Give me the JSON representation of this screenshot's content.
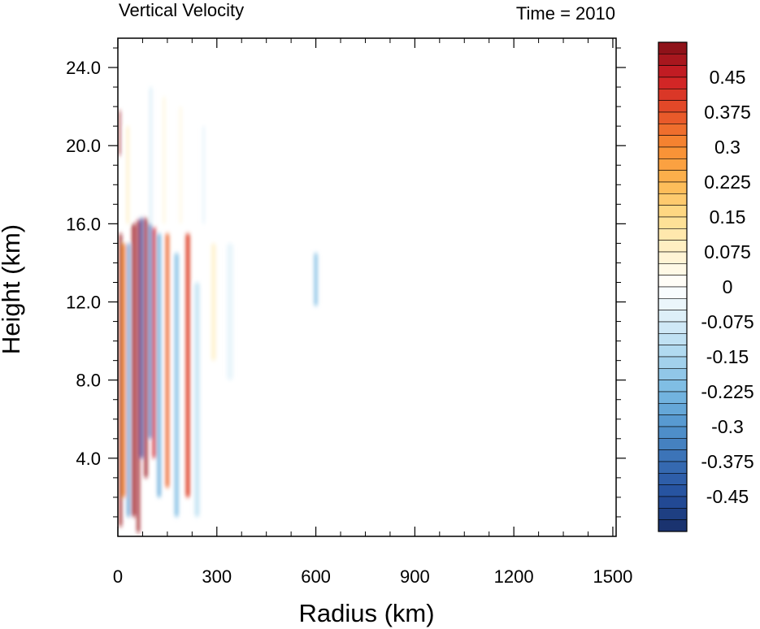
{
  "chart_data": {
    "type": "heatmap",
    "title_left": "Vertical Velocity",
    "title_right": "Time = 2010",
    "xlabel": "Radius (km)",
    "ylabel": "Height (km)",
    "xlim": [
      0,
      1510
    ],
    "ylim": [
      0,
      25.5
    ],
    "xticks": [
      0,
      300,
      600,
      900,
      1200,
      1500
    ],
    "xticklabels": [
      "0",
      "300",
      "600",
      "900",
      "1200",
      "1500"
    ],
    "yticks": [
      4,
      8,
      12,
      16,
      20,
      24
    ],
    "yticklabels": [
      "4.0",
      "8.0",
      "12.0",
      "16.0",
      "20.0",
      "24.0"
    ],
    "colorbar": {
      "min": -0.525,
      "max": 0.525,
      "step": 0.025,
      "labels": [
        "0.45",
        "0.375",
        "0.3",
        "0.225",
        "0.15",
        "0.075",
        "0",
        "-0.075",
        "-0.15",
        "-0.225",
        "-0.3",
        "-0.375",
        "-0.45"
      ],
      "label_values": [
        0.45,
        0.375,
        0.3,
        0.225,
        0.15,
        0.075,
        0,
        -0.075,
        -0.15,
        -0.225,
        -0.3,
        -0.375,
        -0.45
      ]
    },
    "features": [
      {
        "r": 8,
        "r_width": 8,
        "z_bot": 0.5,
        "z_top": 15.5,
        "w": 0.5
      },
      {
        "r": 5,
        "r_width": 5,
        "z_bot": 19.5,
        "z_top": 21.8,
        "w": 0.5
      },
      {
        "r": 18,
        "r_width": 10,
        "z_bot": 2,
        "z_top": 15,
        "w": 0.3
      },
      {
        "r": 32,
        "r_width": 8,
        "z_bot": 1,
        "z_top": 15,
        "w": -0.3
      },
      {
        "r": 48,
        "r_width": 10,
        "z_bot": 1,
        "z_top": 16,
        "w": 0.5
      },
      {
        "r": 62,
        "r_width": 8,
        "z_bot": 0.2,
        "z_top": 16.2,
        "w": 0.5
      },
      {
        "r": 72,
        "r_width": 8,
        "z_bot": 4,
        "z_top": 16.3,
        "w": -0.45
      },
      {
        "r": 85,
        "r_width": 9,
        "z_bot": 3,
        "z_top": 16.3,
        "w": 0.5
      },
      {
        "r": 98,
        "r_width": 8,
        "z_bot": 5,
        "z_top": 16,
        "w": -0.35
      },
      {
        "r": 110,
        "r_width": 9,
        "z_bot": 4,
        "z_top": 15.8,
        "w": 0.45
      },
      {
        "r": 125,
        "r_width": 10,
        "z_bot": 2,
        "z_top": 15.5,
        "w": -0.25
      },
      {
        "r": 150,
        "r_width": 10,
        "z_bot": 2.5,
        "z_top": 15.5,
        "w": 0.35
      },
      {
        "r": 178,
        "r_width": 12,
        "z_bot": 1,
        "z_top": 14.5,
        "w": -0.2
      },
      {
        "r": 212,
        "r_width": 12,
        "z_bot": 2,
        "z_top": 15.5,
        "w": 0.4
      },
      {
        "r": 240,
        "r_width": 15,
        "z_bot": 1,
        "z_top": 13,
        "w": -0.1
      },
      {
        "r": 290,
        "r_width": 14,
        "z_bot": 9,
        "z_top": 15,
        "w": 0.07
      },
      {
        "r": 340,
        "r_width": 20,
        "z_bot": 8,
        "z_top": 15,
        "w": -0.04
      },
      {
        "r": 600,
        "r_width": 10,
        "z_bot": 11.8,
        "z_top": 14.5,
        "w": -0.2
      },
      {
        "r": 100,
        "r_width": 5,
        "z_bot": 16,
        "z_top": 23,
        "w": -0.1
      },
      {
        "r": 140,
        "r_width": 6,
        "z_bot": 16,
        "z_top": 22.5,
        "w": 0.06
      },
      {
        "r": 190,
        "r_width": 6,
        "z_bot": 16,
        "z_top": 22,
        "w": 0.05
      },
      {
        "r": 260,
        "r_width": 8,
        "z_bot": 16,
        "z_top": 21,
        "w": -0.04
      },
      {
        "r": 30,
        "r_width": 6,
        "z_bot": 16,
        "z_top": 21,
        "w": 0.1
      }
    ]
  }
}
